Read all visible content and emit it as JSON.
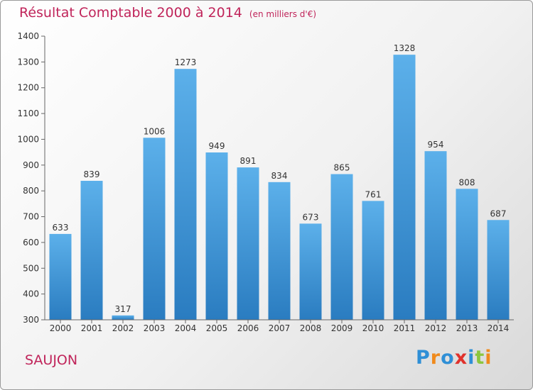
{
  "header": {
    "title": "Résultat Comptable 2000 à 2014",
    "unit": "(en milliers d'€)"
  },
  "location": "SAUJON",
  "brand": {
    "logo_text": "Proxiti",
    "letters": [
      {
        "ch": "P",
        "color": "#2f8fd6"
      },
      {
        "ch": "r",
        "color": "#f08a1c"
      },
      {
        "ch": "o",
        "color": "#2f8fd6"
      },
      {
        "ch": "x",
        "color": "#e0322c"
      },
      {
        "ch": "i",
        "color": "#2f8fd6"
      },
      {
        "ch": "t",
        "color": "#8cc63f"
      },
      {
        "ch": "i",
        "color": "#f08a1c"
      }
    ]
  },
  "chart_data": {
    "type": "bar",
    "categories": [
      "2000",
      "2001",
      "2002",
      "2003",
      "2004",
      "2005",
      "2006",
      "2007",
      "2008",
      "2009",
      "2010",
      "2011",
      "2012",
      "2013",
      "2014"
    ],
    "values": [
      633,
      839,
      317,
      1006,
      1273,
      949,
      891,
      834,
      673,
      865,
      761,
      1328,
      954,
      808,
      687
    ],
    "ylim": [
      300,
      1400
    ],
    "yticks": [
      300,
      400,
      500,
      600,
      700,
      800,
      900,
      1000,
      1100,
      1200,
      1300,
      1400
    ],
    "data_labels": true,
    "grid": false,
    "bar_color": "#3f94d8"
  }
}
